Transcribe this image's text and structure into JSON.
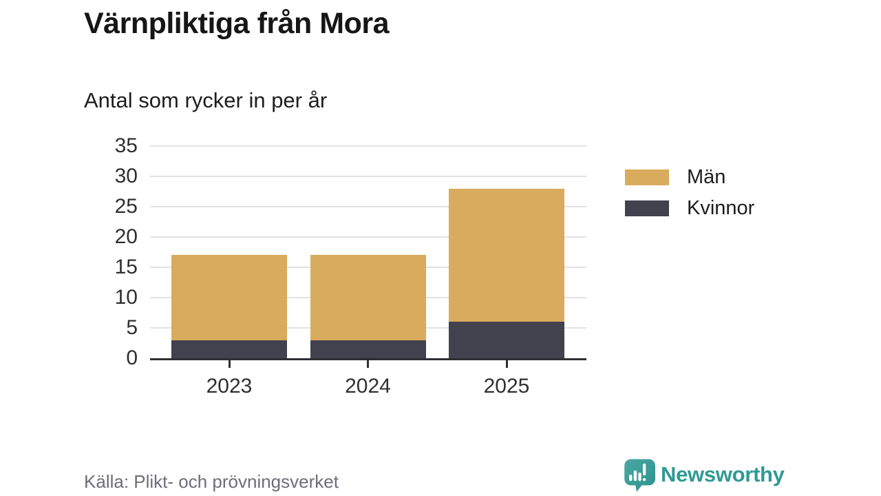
{
  "header": {
    "title": "Värnpliktiga från Mora",
    "subtitle": "Antal som rycker in per år"
  },
  "chart_data": {
    "type": "bar",
    "stacked": true,
    "title": "Värnpliktiga från Mora",
    "subtitle": "Antal som rycker in per år",
    "categories": [
      "2023",
      "2024",
      "2025"
    ],
    "series": [
      {
        "name": "Män",
        "color": "#d9ab5c",
        "values": [
          14,
          14,
          22
        ]
      },
      {
        "name": "Kvinnor",
        "color": "#42414e",
        "values": [
          3,
          3,
          6
        ]
      }
    ],
    "stack_order_bottom_to_top": [
      "Kvinnor",
      "Män"
    ],
    "totals": [
      17,
      17,
      28
    ],
    "xlabel": "",
    "ylabel": "",
    "ylim": [
      0,
      35
    ],
    "yticks": [
      0,
      5,
      10,
      15,
      20,
      25,
      30,
      35
    ],
    "grid": "horizontal",
    "gridline_color": "#e2e2e2",
    "axis_color": "#2f2e33",
    "legend_position": "right"
  },
  "footer": {
    "source": "Källa: Plikt- och prövningsverket",
    "brand": "Newsworthy",
    "brand_color": "#2f9a94"
  }
}
